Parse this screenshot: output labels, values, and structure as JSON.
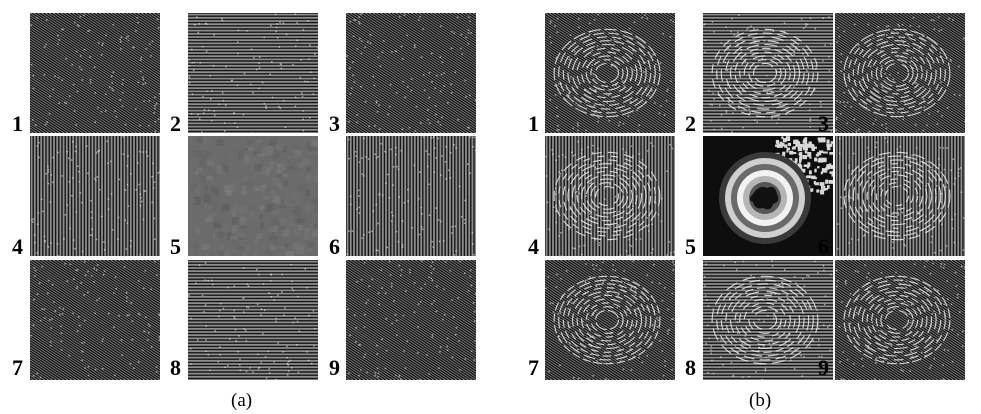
{
  "panels": [
    {
      "caption": "(a)",
      "tiles": [
        {
          "label": "1",
          "pattern": "diagonal-fringes"
        },
        {
          "label": "2",
          "pattern": "horizontal-fringes"
        },
        {
          "label": "3",
          "pattern": "diagonal-fringes"
        },
        {
          "label": "4",
          "pattern": "vertical-fringes"
        },
        {
          "label": "5",
          "pattern": "uniform-gray-noise"
        },
        {
          "label": "6",
          "pattern": "vertical-fringes"
        },
        {
          "label": "7",
          "pattern": "diagonal-fringes"
        },
        {
          "label": "8",
          "pattern": "horizontal-fringes"
        },
        {
          "label": "9",
          "pattern": "diagonal-fringes"
        }
      ]
    },
    {
      "caption": "(b)",
      "tiles": [
        {
          "label": "1",
          "pattern": "diagonal-fringes-with-circular-defect"
        },
        {
          "label": "2",
          "pattern": "horizontal-fringes-with-circular-defect"
        },
        {
          "label": "3",
          "pattern": "diagonal-fringes-with-circular-defect"
        },
        {
          "label": "4",
          "pattern": "vertical-fringes-with-circular-defect"
        },
        {
          "label": "5",
          "pattern": "concentric-ring-phase-map"
        },
        {
          "label": "6",
          "pattern": "vertical-fringes-with-circular-defect"
        },
        {
          "label": "7",
          "pattern": "diagonal-fringes-with-circular-defect"
        },
        {
          "label": "8",
          "pattern": "horizontal-fringes-with-circular-defect"
        },
        {
          "label": "9",
          "pattern": "diagonal-fringes-with-circular-defect"
        }
      ]
    }
  ]
}
